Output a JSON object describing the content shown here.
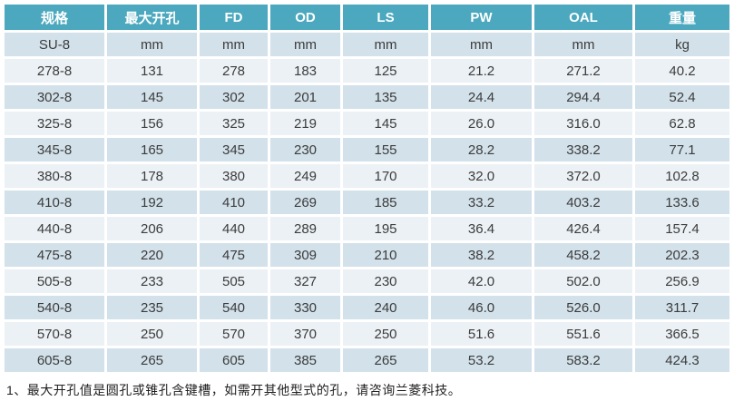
{
  "table": {
    "headers": [
      "规格",
      "最大开孔",
      "FD",
      "OD",
      "LS",
      "PW",
      "OAL",
      "重量"
    ],
    "units_row": [
      "SU-8",
      "mm",
      "mm",
      "mm",
      "mm",
      "mm",
      "mm",
      "kg"
    ],
    "rows": [
      [
        "278-8",
        "131",
        "278",
        "183",
        "125",
        "21.2",
        "271.2",
        "40.2"
      ],
      [
        "302-8",
        "145",
        "302",
        "201",
        "135",
        "24.4",
        "294.4",
        "52.4"
      ],
      [
        "325-8",
        "156",
        "325",
        "219",
        "145",
        "26.0",
        "316.0",
        "62.8"
      ],
      [
        "345-8",
        "165",
        "345",
        "230",
        "155",
        "28.2",
        "338.2",
        "77.1"
      ],
      [
        "380-8",
        "178",
        "380",
        "249",
        "170",
        "32.0",
        "372.0",
        "102.8"
      ],
      [
        "410-8",
        "192",
        "410",
        "269",
        "185",
        "33.2",
        "403.2",
        "133.6"
      ],
      [
        "440-8",
        "206",
        "440",
        "289",
        "195",
        "36.4",
        "426.4",
        "157.4"
      ],
      [
        "475-8",
        "220",
        "475",
        "309",
        "210",
        "38.2",
        "458.2",
        "202.3"
      ],
      [
        "505-8",
        "233",
        "505",
        "327",
        "230",
        "42.0",
        "502.0",
        "256.9"
      ],
      [
        "540-8",
        "235",
        "540",
        "330",
        "240",
        "46.0",
        "526.0",
        "311.7"
      ],
      [
        "570-8",
        "250",
        "570",
        "370",
        "250",
        "51.6",
        "551.6",
        "366.5"
      ],
      [
        "605-8",
        "265",
        "605",
        "385",
        "265",
        "53.2",
        "583.2",
        "424.3"
      ]
    ]
  },
  "footnote": "1、最大开孔值是圆孔或锥孔含键槽，如需开其他型式的孔，请咨询兰菱科技。",
  "colors": {
    "header_bg": "#4BA8BE",
    "header_text": "#FFFFFF",
    "band_dark": "#D2E1EA",
    "band_light": "#EBF1F5",
    "cell_text": "#3C3C3C",
    "footnote_text": "#1F1F1F"
  }
}
